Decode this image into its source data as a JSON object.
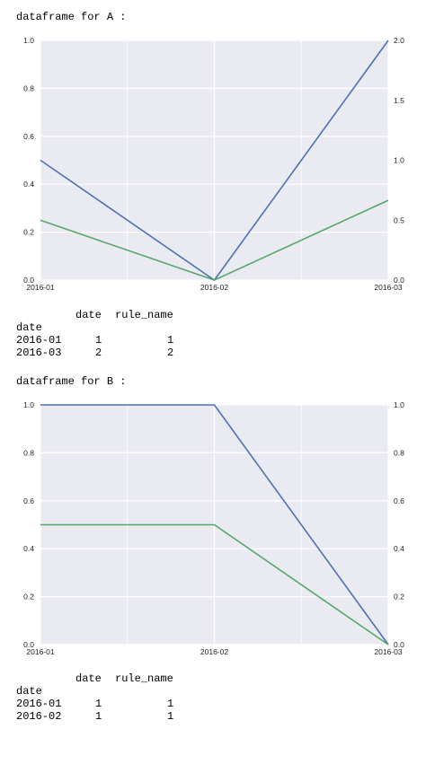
{
  "sections": [
    {
      "heading": "dataframe for A :",
      "chart_data": {
        "type": "line",
        "x": [
          "2016-01",
          "2016-02",
          "2016-03"
        ],
        "y_left_lim": [
          0,
          1.0
        ],
        "y_left_ticks": [
          "0.0",
          "0.2",
          "0.4",
          "0.6",
          "0.8",
          "1.0"
        ],
        "y_right_lim": [
          0,
          2.0
        ],
        "y_right_ticks": [
          "0.0",
          "0.5",
          "1.0",
          "1.5",
          "2.0"
        ],
        "grid": true,
        "series": [
          {
            "color": "#4c72b0",
            "axis": "right",
            "values": [
              1.0,
              0.0,
              2.0
            ]
          },
          {
            "color": "#55a868",
            "axis": "left",
            "values": [
              0.25,
              0.0,
              0.333
            ]
          }
        ]
      },
      "table": {
        "columns": [
          "date",
          "rule_name"
        ],
        "index_name": "date",
        "rows": [
          {
            "index": "2016-01",
            "date": "1",
            "rule_name": "1"
          },
          {
            "index": "2016-03",
            "date": "2",
            "rule_name": "2"
          }
        ]
      }
    },
    {
      "heading": "dataframe for B :",
      "chart_data": {
        "type": "line",
        "x": [
          "2016-01",
          "2016-02",
          "2016-03"
        ],
        "y_left_lim": [
          0,
          1.0
        ],
        "y_left_ticks": [
          "0.0",
          "0.2",
          "0.4",
          "0.6",
          "0.8",
          "1.0"
        ],
        "y_right_lim": [
          0,
          1.0
        ],
        "y_right_ticks": [
          "0.0",
          "0.2",
          "0.4",
          "0.6",
          "0.8",
          "1.0"
        ],
        "grid": true,
        "series": [
          {
            "color": "#4c72b0",
            "axis": "right",
            "values": [
              1.0,
              1.0,
              0.0
            ]
          },
          {
            "color": "#55a868",
            "axis": "left",
            "values": [
              0.5,
              0.5,
              0.0
            ]
          }
        ]
      },
      "table": {
        "columns": [
          "date",
          "rule_name"
        ],
        "index_name": "date",
        "rows": [
          {
            "index": "2016-01",
            "date": "1",
            "rule_name": "1"
          },
          {
            "index": "2016-02",
            "date": "1",
            "rule_name": "1"
          }
        ]
      }
    }
  ]
}
